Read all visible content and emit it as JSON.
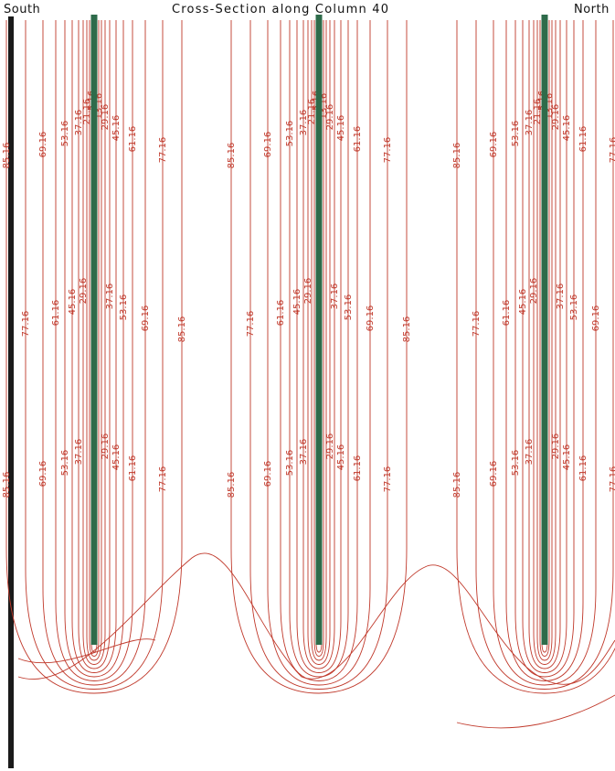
{
  "header": {
    "left": "South",
    "title": "Cross-Section along Column  40",
    "right": "North"
  },
  "colors": {
    "contour": "#c0392b",
    "well": "#2e6b4a",
    "border": "#1a1a1a",
    "background": "#ffffff"
  },
  "contour_levels": [
    "5.16",
    "13.16",
    "21.16",
    "29.16",
    "37.16",
    "45.16",
    "53.16",
    "61.16",
    "69.16",
    "77.16",
    "85.16"
  ],
  "wells": [
    {
      "name": "well-1"
    },
    {
      "name": "well-2"
    },
    {
      "name": "well-3"
    }
  ]
}
